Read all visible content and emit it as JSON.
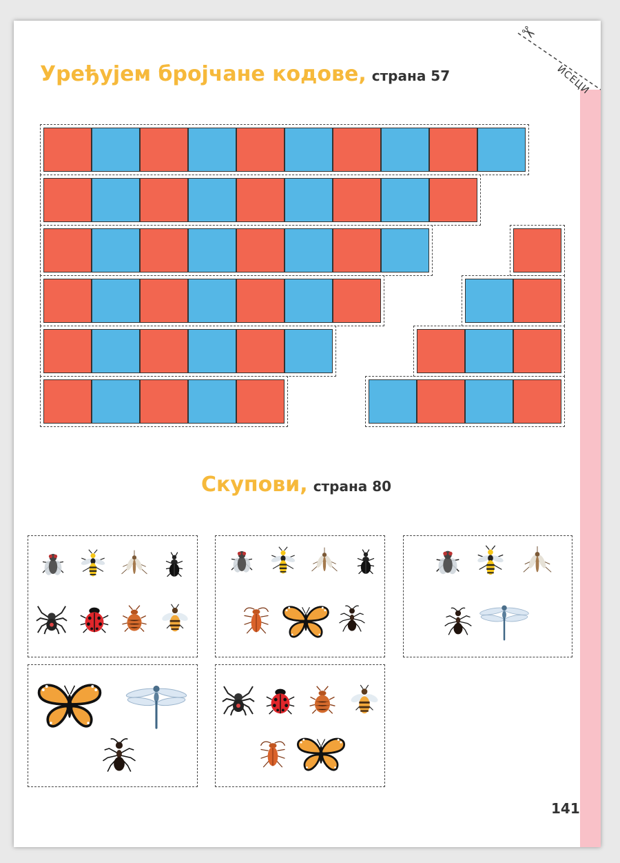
{
  "section1": {
    "title": "Уређујем бројчане кодове,",
    "page_ref": "страна 57"
  },
  "section2": {
    "title": "Скупови,",
    "page_ref": "страна 80"
  },
  "cut_label": "ИСЕЦИ",
  "page_number": "141",
  "colors": {
    "red": "#f26650",
    "blue": "#55b7e6",
    "accent": "#f6b93b",
    "pink": "#f9c1c8"
  },
  "code_strips_left": [
    [
      "red",
      "blue",
      "red",
      "blue",
      "red",
      "blue",
      "red",
      "blue",
      "red",
      "blue"
    ],
    [
      "red",
      "blue",
      "red",
      "blue",
      "red",
      "blue",
      "red",
      "blue",
      "red"
    ],
    [
      "red",
      "blue",
      "red",
      "blue",
      "red",
      "blue",
      "red",
      "blue"
    ],
    [
      "red",
      "blue",
      "red",
      "blue",
      "red",
      "blue",
      "red"
    ],
    [
      "red",
      "blue",
      "red",
      "blue",
      "red",
      "blue"
    ],
    [
      "red",
      "blue",
      "red",
      "blue",
      "red"
    ]
  ],
  "code_strips_right": [
    [
      "red"
    ],
    [
      "blue",
      "red"
    ],
    [
      "red",
      "blue",
      "red"
    ],
    [
      "blue",
      "red",
      "blue",
      "red"
    ]
  ],
  "insect_cards": [
    {
      "insects": [
        "fly-icon",
        "wasp-icon",
        "mosquito-icon",
        "beetle-icon",
        "spider-icon",
        "ladybug-icon",
        "bedbug-icon",
        "bee-icon"
      ]
    },
    {
      "insects": [
        "fly-icon",
        "wasp-icon",
        "mosquito-icon",
        "beetle-icon",
        "cockroach-icon",
        "butterfly-icon",
        "ant-icon"
      ]
    },
    {
      "insects": [
        "fly-icon",
        "wasp-icon",
        "mosquito-icon",
        "ant-icon",
        "dragonfly-icon"
      ]
    },
    {
      "insects": [
        "butterfly-icon",
        "dragonfly-icon",
        "ant-icon"
      ]
    },
    {
      "insects": [
        "spider-icon",
        "ladybug-icon",
        "bedbug-icon",
        "bee-icon",
        "cockroach-icon",
        "butterfly-icon"
      ]
    }
  ]
}
